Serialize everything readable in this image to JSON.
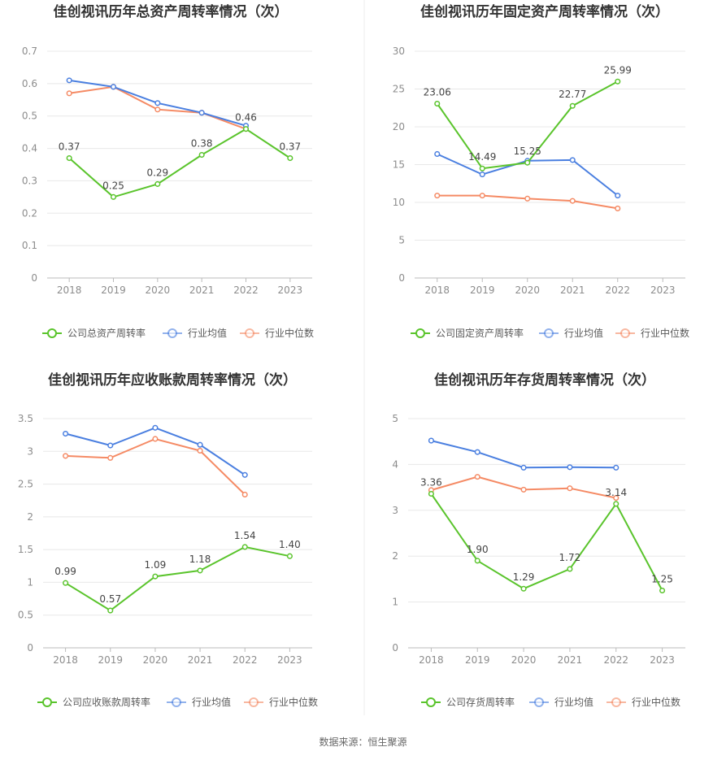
{
  "colors": {
    "company": "#5ac42c",
    "average": "#4a7fe0",
    "median": "#f58a64"
  },
  "source": "数据来源：恒生聚源",
  "chart_data": [
    {
      "type": "line",
      "title": "佳创视讯历年总资产周转率情况（次）",
      "categories": [
        "2018",
        "2019",
        "2020",
        "2021",
        "2022",
        "2023"
      ],
      "ylim": [
        0,
        0.7
      ],
      "yticks": [
        "0",
        "0.1",
        "0.2",
        "0.3",
        "0.4",
        "0.5",
        "0.6",
        "0.7"
      ],
      "series": [
        {
          "name": "公司总资产周转率",
          "values": [
            0.37,
            0.25,
            0.29,
            0.38,
            0.46,
            0.37
          ],
          "labels": [
            "0.37",
            "0.25",
            "0.29",
            "0.38",
            "0.46",
            "0.37"
          ]
        },
        {
          "name": "行业均值",
          "values": [
            0.61,
            0.59,
            0.54,
            0.51,
            0.47,
            null
          ]
        },
        {
          "name": "行业中位数",
          "values": [
            0.57,
            0.59,
            0.52,
            0.51,
            0.46,
            null
          ]
        }
      ]
    },
    {
      "type": "line",
      "title": "佳创视讯历年固定资产周转率情况（次）",
      "categories": [
        "2018",
        "2019",
        "2020",
        "2021",
        "2022",
        "2023"
      ],
      "ylim": [
        0,
        30
      ],
      "yticks": [
        "0",
        "5",
        "10",
        "15",
        "20",
        "25",
        "30"
      ],
      "series": [
        {
          "name": "公司固定资产周转率",
          "values": [
            23.06,
            14.49,
            15.25,
            22.77,
            25.99,
            null
          ],
          "labels": [
            "23.06",
            "14.49",
            "15.25",
            "22.77",
            "25.99",
            ""
          ]
        },
        {
          "name": "行业均值",
          "values": [
            16.4,
            13.7,
            15.5,
            15.6,
            10.9,
            null
          ]
        },
        {
          "name": "行业中位数",
          "values": [
            10.9,
            10.9,
            10.5,
            10.2,
            9.2,
            null
          ]
        }
      ]
    },
    {
      "type": "line",
      "title": "佳创视讯历年应收账款周转率情况（次）",
      "categories": [
        "2018",
        "2019",
        "2020",
        "2021",
        "2022",
        "2023"
      ],
      "ylim": [
        0,
        3.5
      ],
      "yticks": [
        "0",
        "0.5",
        "1",
        "1.5",
        "2",
        "2.5",
        "3",
        "3.5"
      ],
      "series": [
        {
          "name": "公司应收账款周转率",
          "values": [
            0.99,
            0.57,
            1.09,
            1.18,
            1.54,
            1.4
          ],
          "labels": [
            "0.99",
            "0.57",
            "1.09",
            "1.18",
            "1.54",
            "1.40"
          ]
        },
        {
          "name": "行业均值",
          "values": [
            3.27,
            3.09,
            3.36,
            3.1,
            2.64,
            null
          ]
        },
        {
          "name": "行业中位数",
          "values": [
            2.93,
            2.9,
            3.19,
            3.01,
            2.34,
            null
          ]
        }
      ]
    },
    {
      "type": "line",
      "title": "佳创视讯历年存货周转率情况（次）",
      "categories": [
        "2018",
        "2019",
        "2020",
        "2021",
        "2022",
        "2023"
      ],
      "ylim": [
        0,
        5
      ],
      "yticks": [
        "0",
        "1",
        "2",
        "3",
        "4",
        "5"
      ],
      "series": [
        {
          "name": "公司存货周转率",
          "values": [
            3.36,
            1.9,
            1.29,
            1.72,
            3.14,
            1.25
          ],
          "labels": [
            "3.36",
            "1.90",
            "1.29",
            "1.72",
            "3.14",
            "1.25"
          ]
        },
        {
          "name": "行业均值",
          "values": [
            4.52,
            4.27,
            3.93,
            3.94,
            3.93,
            null
          ]
        },
        {
          "name": "行业中位数",
          "values": [
            3.44,
            3.73,
            3.45,
            3.48,
            3.27,
            null
          ]
        }
      ]
    }
  ]
}
